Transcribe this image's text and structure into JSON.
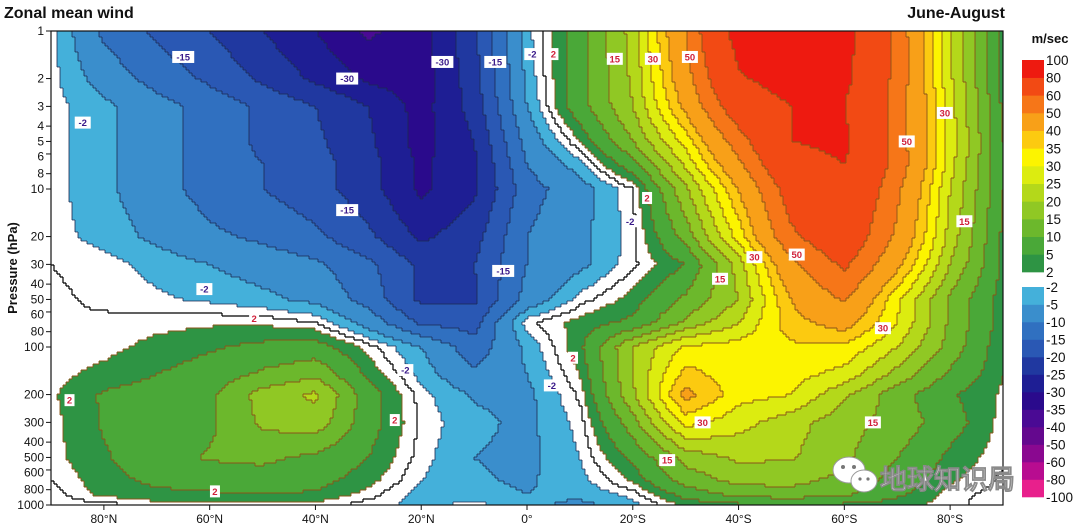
{
  "header": {
    "title": "Zonal mean wind",
    "season": "June-August"
  },
  "watermark": "地球知识局",
  "chart_data": {
    "type": "heatmap",
    "style": "filled-contour",
    "title": "Zonal mean wind",
    "subtitle": "June-August",
    "ylabel": "Pressure (hPa)",
    "xlabel": "",
    "x_range": [
      90,
      -90
    ],
    "y_range": [
      1000,
      1
    ],
    "y_scale": "log",
    "grid": false,
    "legend": "right",
    "x_ticks": [
      {
        "value": 80,
        "label": "80°N"
      },
      {
        "value": 60,
        "label": "60°N"
      },
      {
        "value": 40,
        "label": "40°N"
      },
      {
        "value": 20,
        "label": "20°N"
      },
      {
        "value": 0,
        "label": "0°"
      },
      {
        "value": -20,
        "label": "20°S"
      },
      {
        "value": -40,
        "label": "40°S"
      },
      {
        "value": -60,
        "label": "60°S"
      },
      {
        "value": -80,
        "label": "80°S"
      }
    ],
    "y_ticks": [
      1,
      2,
      3,
      4,
      5,
      6,
      8,
      10,
      20,
      30,
      40,
      50,
      60,
      80,
      100,
      200,
      300,
      400,
      500,
      600,
      800,
      1000
    ],
    "colorbar": {
      "unit": "m/sec",
      "levels": [
        -100,
        -80,
        -60,
        -50,
        -40,
        -35,
        -30,
        -25,
        -20,
        -15,
        -10,
        -5,
        -2,
        2,
        5,
        10,
        15,
        20,
        25,
        30,
        35,
        40,
        50,
        60,
        80,
        100
      ],
      "colors": [
        "#e8208c",
        "#b80c90",
        "#8a0890",
        "#64088e",
        "#4a0a94",
        "#2a0a8c",
        "#1e1e94",
        "#2038a0",
        "#2a58b4",
        "#3070c0",
        "#3a8ecc",
        "#44b0da",
        "#ffffff",
        "#2e9444",
        "#4aa838",
        "#6cb82c",
        "#90c824",
        "#b4d81a",
        "#dcec10",
        "#fcf400",
        "#fcca10",
        "#f8a018",
        "#f67618",
        "#f24a14",
        "#ee1a10"
      ]
    },
    "latitudes": [
      90,
      80,
      70,
      60,
      50,
      40,
      30,
      20,
      10,
      0,
      -10,
      -20,
      -30,
      -40,
      -50,
      -60,
      -70,
      -80,
      -90
    ],
    "pressures": [
      1,
      2,
      3,
      5,
      7,
      10,
      20,
      30,
      50,
      70,
      100,
      150,
      200,
      300,
      500,
      700,
      850,
      1000
    ],
    "values": [
      [
        -1,
        -11,
        -16,
        -20,
        -25,
        -30,
        -36,
        -32,
        -21,
        -3,
        8,
        22,
        50,
        87,
        95,
        86,
        56,
        25,
        3
      ],
      [
        -1,
        -7,
        -12,
        -16,
        -21,
        -26,
        -31,
        -33,
        -22,
        -4,
        8,
        21,
        46,
        78,
        88,
        84,
        56,
        26,
        3.5
      ],
      [
        -1,
        -4,
        -8,
        -12,
        -16,
        -20,
        -25,
        -32,
        -23,
        -5,
        8,
        20,
        42,
        68,
        80,
        80,
        55,
        27,
        4
      ],
      [
        -1,
        -4,
        -8,
        -12,
        -16,
        -19,
        -24,
        -32,
        -25,
        -8,
        2,
        15,
        32,
        55,
        80,
        83,
        55,
        28,
        5
      ],
      [
        -1,
        -4,
        -8,
        -12,
        -15,
        -18,
        -23,
        -31,
        -26,
        -10,
        -3,
        8,
        26,
        48,
        74,
        80,
        56,
        27,
        5
      ],
      [
        -1,
        -4,
        -8,
        -12,
        -15,
        -18,
        -23,
        -31,
        -26,
        -12,
        -7,
        0,
        19,
        40,
        66,
        76,
        52,
        25,
        5
      ],
      [
        -1,
        -3,
        -6,
        -9,
        -11,
        -14,
        -19,
        -26,
        -22,
        -10,
        -6,
        -1,
        12,
        32,
        58,
        70,
        48,
        23,
        4
      ],
      [
        0,
        -1,
        -3,
        -5,
        -7,
        -9,
        -14,
        -21,
        -20,
        -10,
        -6,
        -0.5,
        5,
        22,
        48,
        62,
        42,
        20,
        4
      ],
      [
        0.5,
        -0.5,
        -1.5,
        -2.5,
        -4,
        -6,
        -12,
        -21,
        -21,
        -8,
        -1,
        3,
        11,
        20,
        40,
        51,
        31,
        14,
        3
      ],
      [
        0,
        0.5,
        1,
        1.5,
        1.5,
        0,
        -7,
        -16,
        -17,
        -0.5,
        3,
        6,
        16,
        25,
        38,
        43,
        30,
        14,
        3
      ],
      [
        0,
        1,
        3,
        4.5,
        6,
        7,
        1,
        -5,
        -13,
        -4,
        4,
        20,
        31,
        32,
        34,
        34,
        25,
        13,
        2
      ],
      [
        1,
        3,
        5,
        7,
        11,
        14,
        4,
        -3,
        -9,
        -5,
        2,
        20,
        37,
        32,
        32,
        28,
        18,
        9,
        2
      ],
      [
        1.5,
        5.5,
        7,
        9,
        17,
        21,
        7,
        -1,
        -5.5,
        -6,
        0.5,
        19,
        42,
        32,
        30,
        21,
        12,
        5.5,
        1.5
      ],
      [
        1,
        5.5,
        8,
        9,
        16,
        18,
        7,
        -0.5,
        -4,
        -6,
        -1,
        13,
        32,
        27,
        22,
        17,
        13,
        7,
        1
      ],
      [
        1,
        4.5,
        8,
        10.5,
        11,
        9,
        5,
        -1,
        -5,
        -6,
        -2,
        6,
        17,
        21,
        20.5,
        16,
        10,
        4,
        0.5
      ],
      [
        0,
        3.5,
        6,
        7,
        8,
        6.5,
        3,
        -2,
        -4.5,
        -5.5,
        -3,
        2.5,
        12,
        16.5,
        16.5,
        13.5,
        8,
        2.5,
        -0.5
      ],
      [
        -1,
        3,
        4,
        4.5,
        5,
        4.5,
        1,
        -3,
        -4,
        -5,
        -4,
        -1,
        7,
        12,
        13,
        11,
        6,
        1,
        -1
      ],
      [
        -1,
        -1,
        1,
        1.5,
        1.5,
        1,
        -1,
        -3,
        -1,
        -4,
        -6,
        -3,
        2.5,
        4,
        5,
        4,
        3,
        1,
        -2
      ]
    ],
    "contour_labels": [
      {
        "text": "-15",
        "lat": 65,
        "p": 1.46
      },
      {
        "text": "-30",
        "lat": 34,
        "p": 2.0
      },
      {
        "text": "-30",
        "lat": 16,
        "p": 1.57
      },
      {
        "text": "-15",
        "lat": 6,
        "p": 1.57
      },
      {
        "text": "-2",
        "lat": 84,
        "p": 3.8
      },
      {
        "text": "-15",
        "lat": 34,
        "p": 13.6
      },
      {
        "text": "-15",
        "lat": 4.5,
        "p": 33
      },
      {
        "text": "-2",
        "lat": -1,
        "p": 1.4
      },
      {
        "text": "2",
        "lat": -5,
        "p": 1.4
      },
      {
        "text": "15",
        "lat": -16.6,
        "p": 1.5
      },
      {
        "text": "30",
        "lat": -23.8,
        "p": 1.5
      },
      {
        "text": "50",
        "lat": -30.8,
        "p": 1.46
      },
      {
        "text": "30",
        "lat": -79,
        "p": 3.3
      },
      {
        "text": "50",
        "lat": -71.8,
        "p": 5.0
      },
      {
        "text": "2",
        "lat": -22.7,
        "p": 11.4
      },
      {
        "text": "-2",
        "lat": -19.5,
        "p": 16
      },
      {
        "text": "15",
        "lat": -82.7,
        "p": 16
      },
      {
        "text": "30",
        "lat": -43,
        "p": 27
      },
      {
        "text": "50",
        "lat": -51,
        "p": 26
      },
      {
        "text": "15",
        "lat": -36.5,
        "p": 37
      },
      {
        "text": "-2",
        "lat": 61,
        "p": 43
      },
      {
        "text": "2",
        "lat": 51.6,
        "p": 66
      },
      {
        "text": "-2",
        "lat": 23,
        "p": 140
      },
      {
        "text": "2",
        "lat": 86.5,
        "p": 217
      },
      {
        "text": "2",
        "lat": 25,
        "p": 290
      },
      {
        "text": "2",
        "lat": 59,
        "p": 820
      },
      {
        "text": "-2",
        "lat": -4.7,
        "p": 175
      },
      {
        "text": "2",
        "lat": -8.7,
        "p": 117
      },
      {
        "text": "30",
        "lat": -67.3,
        "p": 76
      },
      {
        "text": "30",
        "lat": -33.2,
        "p": 300
      },
      {
        "text": "15",
        "lat": -65.4,
        "p": 300
      },
      {
        "text": "15",
        "lat": -26.5,
        "p": 520
      }
    ]
  }
}
